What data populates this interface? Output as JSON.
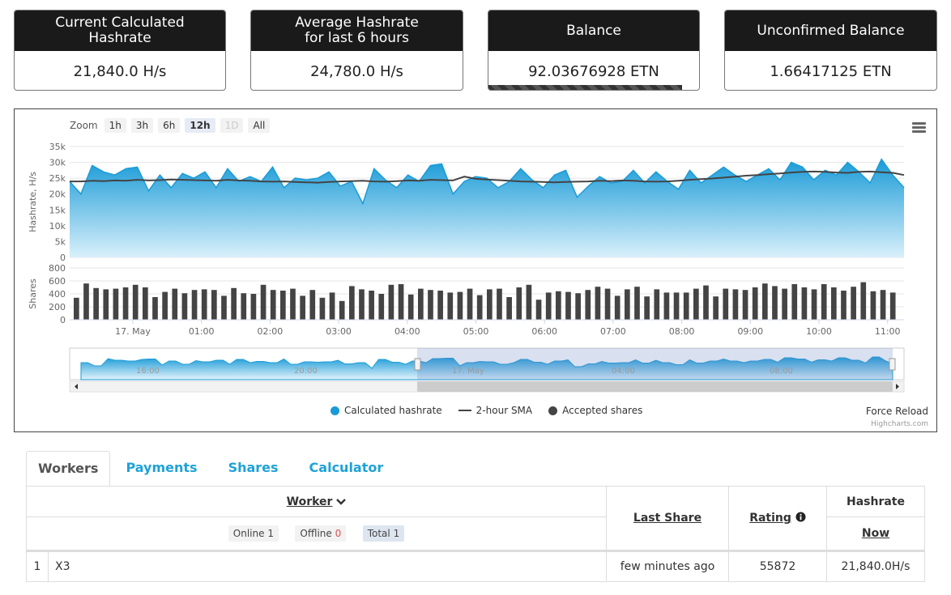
{
  "cards": [
    {
      "title_line1": "Current Calculated",
      "title_line2": "Hashrate",
      "value": "21,840.0 H/s"
    },
    {
      "title_line1": "Average Hashrate",
      "title_line2": "for last 6 hours",
      "value": "24,780.0 H/s"
    },
    {
      "title_line1": "Balance",
      "title_line2": "",
      "value": "92.03676928 ETN",
      "progress": 0.92
    },
    {
      "title_line1": "Unconfirmed Balance",
      "title_line2": "",
      "value": "1.66417125 ETN"
    }
  ],
  "zoom": {
    "label": "Zoom",
    "buttons": [
      "1h",
      "3h",
      "6h",
      "12h",
      "1D",
      "All"
    ],
    "active": "12h",
    "disabled": "1D"
  },
  "chart_data": {
    "type": "area",
    "hashrate_ylabel": "Hashrate, H/s",
    "hashrate_ylim": [
      0,
      35000
    ],
    "hashrate_yticks": [
      "35k",
      "30k",
      "25k",
      "20k",
      "15k",
      "10k",
      "5k",
      "0"
    ],
    "shares_ylabel": "Shares",
    "shares_ylim": [
      0,
      800
    ],
    "shares_yticks": [
      "800",
      "600",
      "400",
      "200",
      "0"
    ],
    "xticks": [
      "17. May",
      "01:00",
      "02:00",
      "03:00",
      "04:00",
      "05:00",
      "06:00",
      "07:00",
      "08:00",
      "09:00",
      "10:00",
      "11:00"
    ],
    "navigator_ticks": [
      "16:00",
      "20:00",
      "17. May",
      "04:00",
      "08:00"
    ],
    "series": [
      {
        "name": "Calculated hashrate",
        "color": "#1a9bd7",
        "values": [
          24000,
          20000,
          29000,
          27000,
          26000,
          28000,
          28500,
          21000,
          26000,
          22000,
          26500,
          25000,
          27000,
          22000,
          28000,
          24000,
          25500,
          24000,
          28500,
          22000,
          25000,
          24500,
          25000,
          27000,
          22500,
          24000,
          17000,
          28000,
          24500,
          22000,
          26000,
          24000,
          29000,
          29500,
          20000,
          24000,
          25500,
          25000,
          22000,
          24000,
          28000,
          24500,
          22000,
          26000,
          27500,
          19000,
          22500,
          25500,
          23500,
          24000,
          27500,
          23500,
          27000,
          24000,
          21500,
          27500,
          23500,
          26000,
          28500,
          26000,
          24000,
          26000,
          28000,
          24500,
          30000,
          28500,
          24500,
          27500,
          26000,
          30000,
          27000,
          23500,
          31000,
          26000,
          22000
        ]
      },
      {
        "name": "2-hour SMA",
        "color": "#444444",
        "values": [
          24000,
          24000,
          24200,
          24100,
          24300,
          24200,
          24500,
          24300,
          24400,
          24600,
          24500,
          24400,
          24300,
          24200,
          24500,
          24300,
          24200,
          24000,
          23900,
          24000,
          23800,
          23700,
          23600,
          23800,
          24000,
          24100,
          24200,
          24000,
          23900,
          24100,
          24300,
          24200,
          24500,
          24400,
          24300,
          25500,
          24800,
          24600,
          24400,
          24200,
          24000,
          23900,
          23800,
          23700,
          23800,
          23900,
          24000,
          24200,
          24100,
          24300,
          24200,
          24000,
          23900,
          24000,
          24200,
          24500,
          24700,
          24900,
          25200,
          25500,
          25800,
          26000,
          26300,
          26500,
          26800,
          27000,
          27100,
          27000,
          26800,
          26700,
          27000,
          27100,
          26900,
          26700,
          26000
        ]
      },
      {
        "name": "Accepted shares",
        "color": "#444444",
        "values": [
          340,
          560,
          490,
          470,
          480,
          500,
          540,
          500,
          350,
          430,
          480,
          410,
          460,
          470,
          460,
          370,
          490,
          410,
          400,
          540,
          460,
          450,
          480,
          370,
          460,
          340,
          420,
          290,
          520,
          470,
          450,
          400,
          540,
          550,
          390,
          480,
          460,
          450,
          420,
          430,
          480,
          380,
          470,
          480,
          350,
          500,
          540,
          310,
          420,
          440,
          430,
          410,
          460,
          510,
          480,
          370,
          470,
          510,
          360,
          470,
          420,
          420,
          420,
          480,
          530,
          360,
          480,
          470,
          460,
          500,
          560,
          520,
          480,
          550,
          500,
          470,
          550,
          500,
          450,
          510,
          580,
          440,
          460,
          420
        ]
      }
    ],
    "legend": [
      "Calculated hashrate",
      "2-hour SMA",
      "Accepted shares"
    ]
  },
  "chart_footer": {
    "force_reload": "Force Reload",
    "credits": "Highcharts.com"
  },
  "tabs": [
    "Workers",
    "Payments",
    "Shares",
    "Calculator"
  ],
  "table": {
    "col_worker": "Worker",
    "col_last_share": "Last Share",
    "col_rating": "Rating",
    "col_hashrate": "Hashrate",
    "col_now": "Now",
    "filter_online_label": "Online",
    "filter_online_count": "1",
    "filter_offline_label": "Offline",
    "filter_offline_count": "0",
    "filter_total_label": "Total",
    "filter_total_count": "1",
    "rows": [
      {
        "index": "1",
        "worker": "X3",
        "last_share": "few minutes ago",
        "rating": "55872",
        "hashrate": "21,840.0H/s"
      }
    ]
  }
}
